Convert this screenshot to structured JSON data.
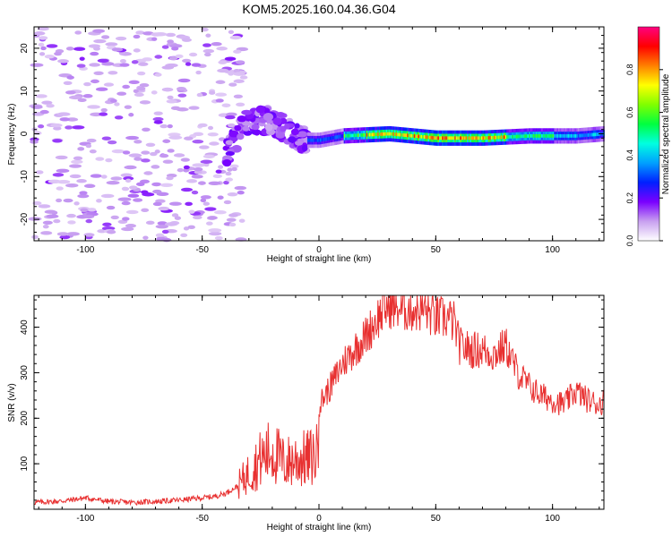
{
  "title": "KOM5.2025.160.04.36.G04",
  "chart_data": [
    {
      "type": "heatmap",
      "xlabel": "Height of straight line (km)",
      "ylabel": "Frequency (Hz)",
      "xlim": [
        -122,
        122
      ],
      "ylim": [
        -25,
        25
      ],
      "x_ticks": [
        "-100",
        "-50",
        "0",
        "50",
        "100"
      ],
      "y_ticks": [
        "-20",
        "-10",
        "0",
        "10",
        "20"
      ],
      "colorbar": {
        "label": "Normalized spectral amplitude",
        "range": [
          0,
          1
        ],
        "ticks": [
          "0.0",
          "0.2",
          "0.4",
          "0.6",
          "0.8"
        ],
        "colors": [
          "#ffffff",
          "#c8a0f0",
          "#7a00ff",
          "#0020ff",
          "#00a0ff",
          "#00ffe0",
          "#00ff40",
          "#80ff00",
          "#ffff00",
          "#ff8000",
          "#ff0000",
          "#ff0080"
        ]
      },
      "features": {
        "noise_region_km": [
          -122,
          -40
        ],
        "transition_region_km": [
          -40,
          -5
        ],
        "line_region_km": [
          -5,
          122
        ],
        "line_frequency_hz": [
          [
            -40,
            -5.0
          ],
          [
            -30,
            3.0
          ],
          [
            -20,
            3.0
          ],
          [
            -12,
            0.0
          ],
          [
            -5,
            -1.5
          ],
          [
            0,
            -1.5
          ],
          [
            10,
            -0.5
          ],
          [
            30,
            0.0
          ],
          [
            50,
            -1.0
          ],
          [
            70,
            -1.0
          ],
          [
            90,
            -0.5
          ],
          [
            110,
            -0.5
          ],
          [
            122,
            0.0
          ]
        ],
        "peak_amplitude_region_km": [
          20,
          80
        ],
        "peak_amplitude": 0.9
      }
    },
    {
      "type": "line",
      "xlabel": "Height of straight line (km)",
      "ylabel": "SNR (v/v)",
      "xlim": [
        -122,
        122
      ],
      "ylim": [
        0,
        470
      ],
      "x_ticks": [
        "-100",
        "-50",
        "0",
        "50",
        "100"
      ],
      "y_ticks": [
        "100",
        "200",
        "300",
        "400"
      ],
      "line_color": "#e83030",
      "series": [
        {
          "x": [
            -122,
            -110,
            -100,
            -90,
            -80,
            -70,
            -60,
            -50,
            -45,
            -40,
            -35,
            -30,
            -25,
            -20,
            -15,
            -10,
            -5,
            -1,
            0,
            5,
            10,
            15,
            20,
            25,
            30,
            35,
            40,
            45,
            50,
            55,
            58,
            60,
            65,
            70,
            75,
            80,
            85,
            90,
            95,
            100,
            105,
            110,
            115,
            120,
            122
          ],
          "values": [
            15,
            18,
            25,
            17,
            15,
            17,
            20,
            25,
            28,
            35,
            50,
            80,
            110,
            130,
            100,
            110,
            110,
            120,
            230,
            270,
            320,
            350,
            380,
            420,
            450,
            440,
            440,
            440,
            420,
            420,
            410,
            360,
            350,
            350,
            340,
            360,
            300,
            270,
            250,
            240,
            230,
            260,
            240,
            230,
            240
          ]
        }
      ]
    }
  ]
}
